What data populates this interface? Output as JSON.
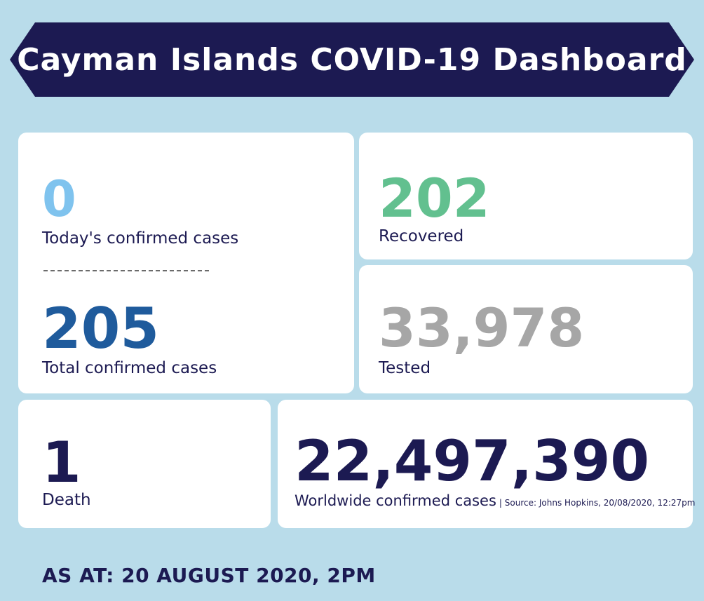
{
  "banner": {
    "title": "Cayman Islands COVID-19 Dashboard"
  },
  "colors": {
    "navy": "#1c1a52",
    "today_blue": "#7fc3ee",
    "total_blue": "#1f5b9c",
    "recovered_green": "#62c08f",
    "tested_gray": "#a6a6a6",
    "background": "#b9dcea"
  },
  "stats": {
    "today_cases": {
      "value": "0",
      "label": "Today's confirmed cases"
    },
    "total_cases": {
      "value": "205",
      "label": "Total confirmed cases"
    },
    "recovered": {
      "value": "202",
      "label": "Recovered"
    },
    "tested": {
      "value": "33,978",
      "label": "Tested"
    },
    "deaths": {
      "value": "1",
      "label": "Death"
    },
    "worldwide": {
      "value": "22,497,390",
      "label": "Worldwide confirmed cases",
      "source": "| Source: Johns Hopkins, 20/08/2020, 12:27pm"
    }
  },
  "footer": {
    "as_at": "AS AT: 20 AUGUST 2020, 2PM"
  }
}
